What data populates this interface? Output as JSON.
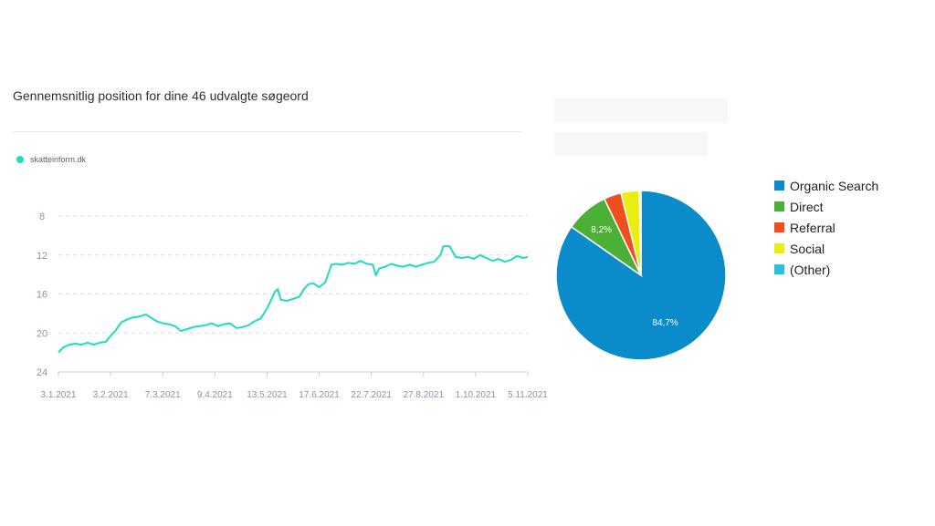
{
  "chart_data": [
    {
      "type": "line",
      "title": "Gennemsnitlig position for dine 46 udvalgte søgeord",
      "y_axis": {
        "ticks": [
          8,
          12,
          16,
          20,
          24
        ],
        "range": [
          24,
          8
        ],
        "inverted": true,
        "grid": true
      },
      "x_axis": {
        "ticks": [
          "3.1.2021",
          "3.2.2021",
          "7.3.2021",
          "9.4.2021",
          "13.5.2021",
          "17.6.2021",
          "22.7.2021",
          "27.8.2021",
          "1.10.2021",
          "5.11.2021"
        ],
        "range": [
          "2021-01-03",
          "2021-11-05"
        ]
      },
      "legend_position": "top-left",
      "series": [
        {
          "name": "skatteinform.dk",
          "color": "#1ddcc0",
          "points": [
            [
              "2021-01-03",
              22.0
            ],
            [
              "2021-01-06",
              21.5
            ],
            [
              "2021-01-10",
              21.2
            ],
            [
              "2021-01-14",
              21.1
            ],
            [
              "2021-01-18",
              21.2
            ],
            [
              "2021-01-22",
              21.0
            ],
            [
              "2021-01-26",
              21.2
            ],
            [
              "2021-01-30",
              21.0
            ],
            [
              "2021-02-03",
              20.9
            ],
            [
              "2021-02-06",
              20.3
            ],
            [
              "2021-02-09",
              19.8
            ],
            [
              "2021-02-13",
              18.9
            ],
            [
              "2021-02-17",
              18.6
            ],
            [
              "2021-02-21",
              18.4
            ],
            [
              "2021-02-25",
              18.3
            ],
            [
              "2021-03-01",
              18.1
            ],
            [
              "2021-03-05",
              18.5
            ],
            [
              "2021-03-08",
              18.8
            ],
            [
              "2021-03-12",
              19.0
            ],
            [
              "2021-03-16",
              19.1
            ],
            [
              "2021-03-20",
              19.3
            ],
            [
              "2021-03-24",
              19.8
            ],
            [
              "2021-03-28",
              19.6
            ],
            [
              "2021-04-01",
              19.4
            ],
            [
              "2021-04-05",
              19.3
            ],
            [
              "2021-04-09",
              19.2
            ],
            [
              "2021-04-13",
              19.0
            ],
            [
              "2021-04-17",
              19.3
            ],
            [
              "2021-04-21",
              19.1
            ],
            [
              "2021-04-25",
              19.0
            ],
            [
              "2021-04-29",
              19.5
            ],
            [
              "2021-05-03",
              19.4
            ],
            [
              "2021-05-07",
              19.2
            ],
            [
              "2021-05-11",
              18.8
            ],
            [
              "2021-05-15",
              18.5
            ],
            [
              "2021-05-19",
              17.5
            ],
            [
              "2021-05-22",
              16.5
            ],
            [
              "2021-05-24",
              15.8
            ],
            [
              "2021-05-26",
              15.5
            ],
            [
              "2021-05-28",
              16.6
            ],
            [
              "2021-06-01",
              16.7
            ],
            [
              "2021-06-05",
              16.5
            ],
            [
              "2021-06-09",
              16.3
            ],
            [
              "2021-06-12",
              15.5
            ],
            [
              "2021-06-15",
              15.0
            ],
            [
              "2021-06-18",
              14.9
            ],
            [
              "2021-06-22",
              15.3
            ],
            [
              "2021-06-26",
              14.8
            ],
            [
              "2021-06-30",
              13.0
            ],
            [
              "2021-07-03",
              12.9
            ],
            [
              "2021-07-07",
              13.0
            ],
            [
              "2021-07-11",
              12.8
            ],
            [
              "2021-07-15",
              12.9
            ],
            [
              "2021-07-19",
              12.6
            ],
            [
              "2021-07-23",
              12.9
            ],
            [
              "2021-07-27",
              13.0
            ],
            [
              "2021-07-29",
              14.1
            ],
            [
              "2021-07-31",
              13.4
            ],
            [
              "2021-08-04",
              13.2
            ],
            [
              "2021-08-08",
              12.9
            ],
            [
              "2021-08-12",
              13.1
            ],
            [
              "2021-08-16",
              13.2
            ],
            [
              "2021-08-20",
              13.0
            ],
            [
              "2021-08-24",
              13.2
            ],
            [
              "2021-08-28",
              13.0
            ],
            [
              "2021-09-01",
              12.8
            ],
            [
              "2021-09-05",
              12.7
            ],
            [
              "2021-09-09",
              12.0
            ],
            [
              "2021-09-11",
              11.1
            ],
            [
              "2021-09-15",
              11.1
            ],
            [
              "2021-09-19",
              12.2
            ],
            [
              "2021-09-23",
              12.3
            ],
            [
              "2021-09-27",
              12.2
            ],
            [
              "2021-10-01",
              12.4
            ],
            [
              "2021-10-05",
              12.0
            ],
            [
              "2021-10-09",
              12.3
            ],
            [
              "2021-10-13",
              12.6
            ],
            [
              "2021-10-17",
              12.4
            ],
            [
              "2021-10-21",
              12.7
            ],
            [
              "2021-10-25",
              12.5
            ],
            [
              "2021-10-29",
              12.1
            ],
            [
              "2021-11-02",
              12.3
            ],
            [
              "2021-11-05",
              12.2
            ]
          ]
        }
      ]
    },
    {
      "type": "pie",
      "legend_position": "right",
      "slices": [
        {
          "label": "Organic Search",
          "value": 84.7,
          "value_label": "84,7%",
          "color": "#0b8cca"
        },
        {
          "label": "Direct",
          "value": 8.2,
          "value_label": "8,2%",
          "color": "#4caf36"
        },
        {
          "label": "Referral",
          "value": 3.3,
          "value_label": "",
          "color": "#ef4e1e"
        },
        {
          "label": "Social",
          "value": 3.5,
          "value_label": "",
          "color": "#e8ee10"
        },
        {
          "label": "(Other)",
          "value": 0.3,
          "value_label": "",
          "color": "#2bc0e0"
        }
      ]
    }
  ]
}
